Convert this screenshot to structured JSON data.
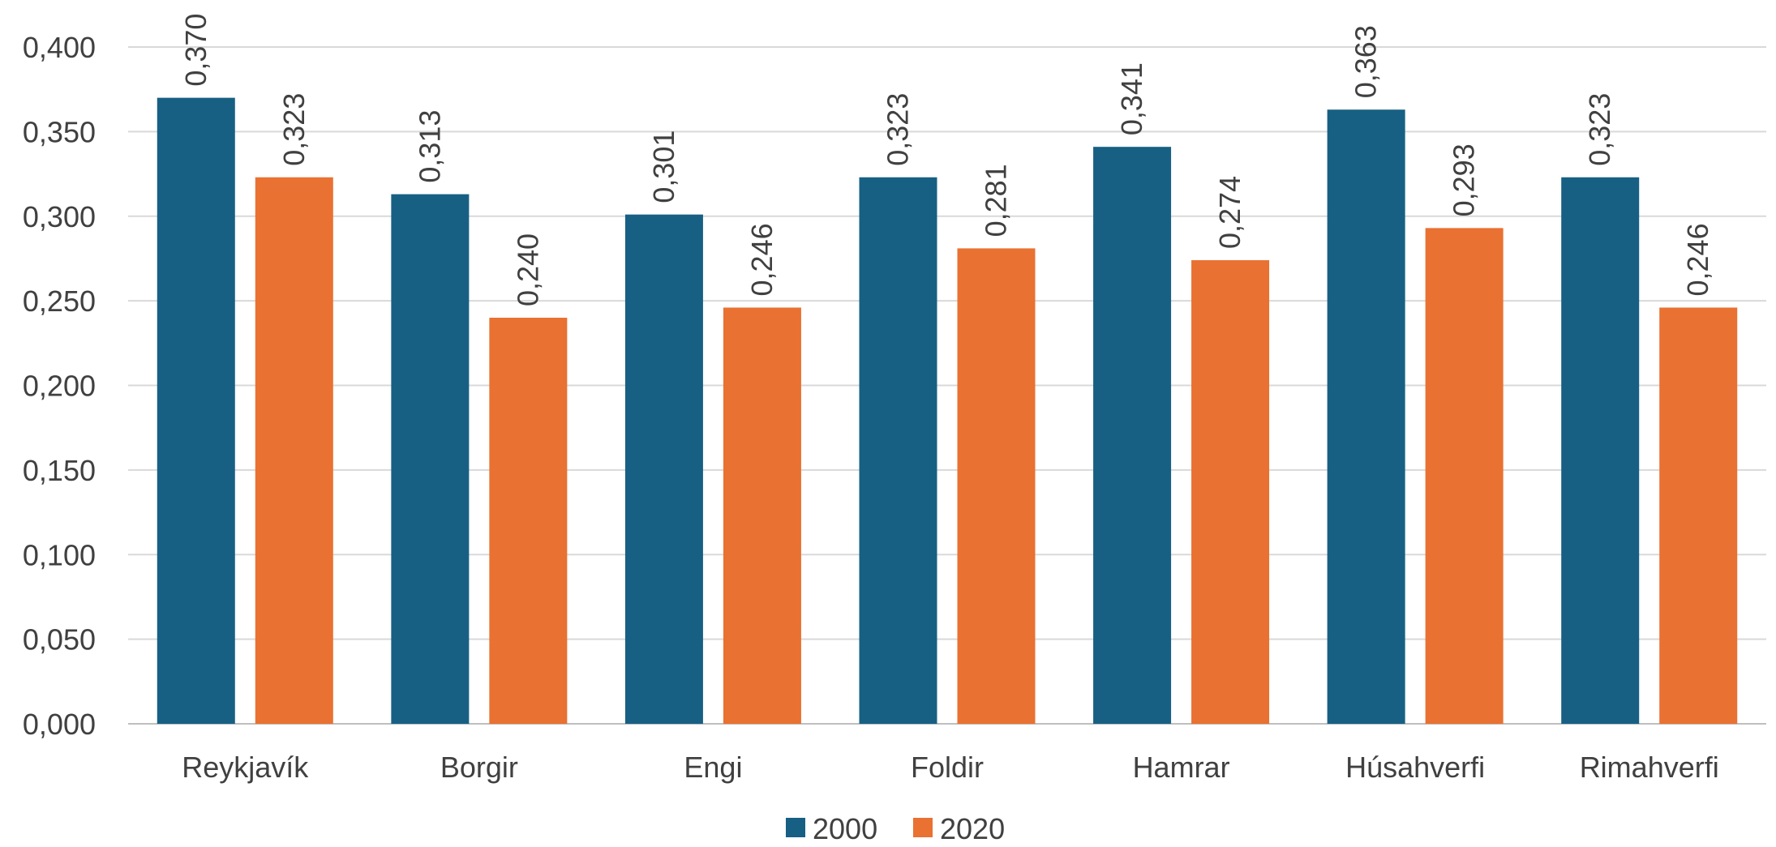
{
  "chart_data": {
    "type": "bar",
    "title": "",
    "xlabel": "",
    "ylabel": "",
    "categories": [
      "Reykjavík",
      "Borgir",
      "Engi",
      "Foldir",
      "Hamrar",
      "Húsahverfi",
      "Rimahverfi"
    ],
    "series": [
      {
        "name": "2000",
        "color": "#176083",
        "values": [
          0.37,
          0.313,
          0.301,
          0.323,
          0.341,
          0.363,
          0.323
        ],
        "labels": [
          "0,370",
          "0,313",
          "0,301",
          "0,323",
          "0,341",
          "0,363",
          "0,323"
        ]
      },
      {
        "name": "2020",
        "color": "#E97132",
        "values": [
          0.323,
          0.24,
          0.246,
          0.281,
          0.274,
          0.293,
          0.246
        ],
        "labels": [
          "0,323",
          "0,240",
          "0,246",
          "0,281",
          "0,274",
          "0,293",
          "0,246"
        ]
      }
    ],
    "ylim": [
      0,
      0.4
    ],
    "yticks": [
      0,
      0.05,
      0.1,
      0.15,
      0.2,
      0.25,
      0.3,
      0.35,
      0.4
    ],
    "ytick_labels": [
      "0,000",
      "0,050",
      "0,100",
      "0,150",
      "0,200",
      "0,250",
      "0,300",
      "0,350",
      "0,400"
    ],
    "grid": true,
    "legend_position": "bottom"
  }
}
